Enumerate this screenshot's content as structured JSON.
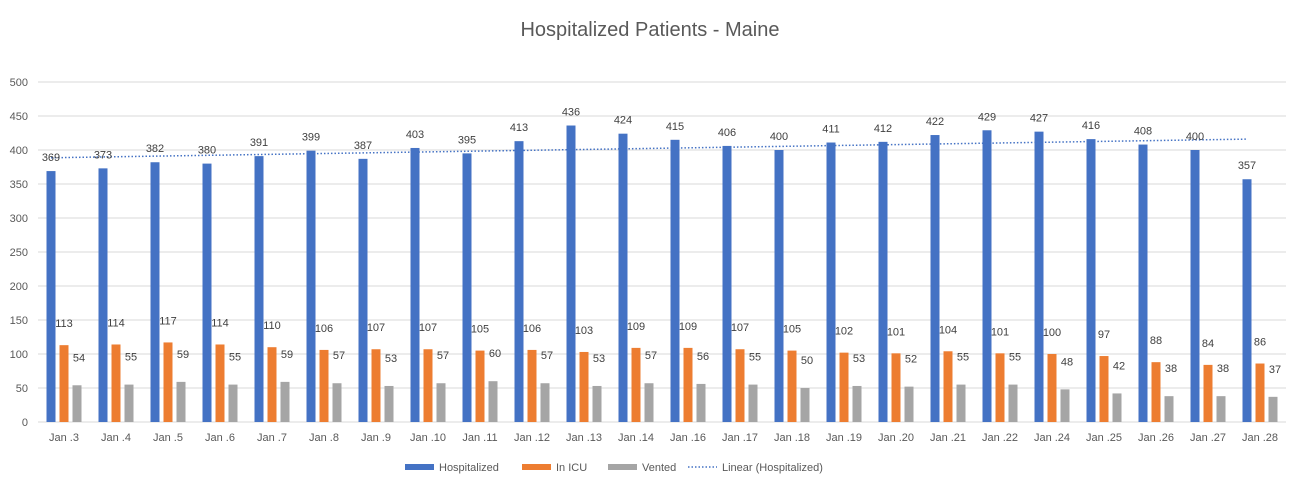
{
  "chart_data": {
    "type": "bar",
    "title": "Hospitalized Patients - Maine",
    "categories": [
      "Jan .3",
      "Jan .4",
      "Jan .5",
      "Jan .6",
      "Jan .7",
      "Jan .8",
      "Jan .9",
      "Jan .10",
      "Jan .11",
      "Jan .12",
      "Jan .13",
      "Jan .14",
      "Jan .16",
      "Jan .17",
      "Jan .18",
      "Jan .19",
      "Jan .20",
      "Jan .21",
      "Jan .22",
      "Jan .24",
      "Jan .25",
      "Jan .26",
      "Jan .27",
      "Jan .28"
    ],
    "series": [
      {
        "name": "Hospitalized",
        "color": "#4472c4",
        "values": [
          369,
          373,
          382,
          380,
          391,
          399,
          387,
          403,
          395,
          413,
          436,
          424,
          415,
          406,
          400,
          411,
          412,
          422,
          429,
          427,
          416,
          408,
          400,
          357
        ]
      },
      {
        "name": "In ICU",
        "color": "#ed7d31",
        "values": [
          113,
          114,
          117,
          114,
          110,
          106,
          107,
          107,
          105,
          106,
          103,
          109,
          109,
          107,
          105,
          102,
          101,
          104,
          101,
          100,
          97,
          88,
          84,
          86
        ]
      },
      {
        "name": "Vented",
        "color": "#a5a5a5",
        "values": [
          54,
          55,
          59,
          55,
          59,
          57,
          53,
          57,
          60,
          57,
          53,
          57,
          56,
          55,
          50,
          53,
          52,
          55,
          55,
          48,
          42,
          38,
          38,
          37
        ]
      }
    ],
    "trendline": {
      "name": "Linear (Hospitalized)",
      "type": "linear",
      "of_series": "Hospitalized",
      "color": "#4472c4"
    },
    "ylim": [
      0,
      500
    ],
    "yticks": [
      0,
      50,
      100,
      150,
      200,
      250,
      300,
      350,
      400,
      450,
      500
    ],
    "grid": true,
    "legend": "bottom",
    "data_labels": true
  }
}
